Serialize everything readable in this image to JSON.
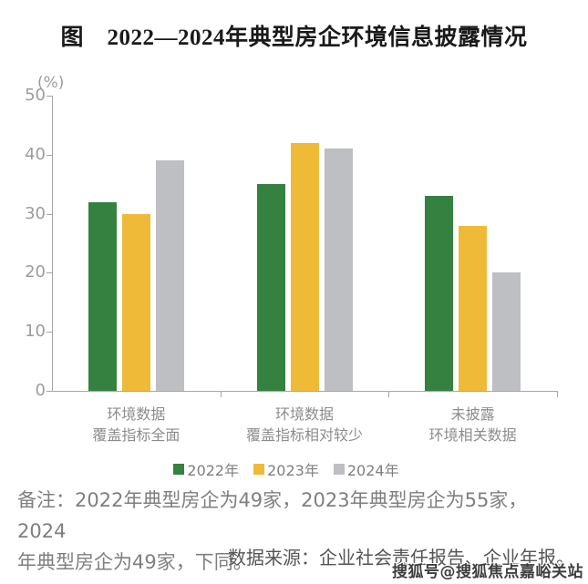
{
  "chart_data": {
    "type": "bar",
    "title": "图　2022—2024年典型房企环境信息披露情况",
    "unit_label": "(%)",
    "categories": [
      {
        "lines": [
          "环境数据",
          "覆盖指标全面"
        ]
      },
      {
        "lines": [
          "环境数据",
          "覆盖指标相对较少"
        ]
      },
      {
        "lines": [
          "未披露",
          "环境相关数据"
        ]
      }
    ],
    "series": [
      {
        "name": "2022年",
        "color": "#35813f",
        "values": [
          32,
          35,
          33
        ]
      },
      {
        "name": "2023年",
        "color": "#eeba38",
        "values": [
          30,
          42,
          28
        ]
      },
      {
        "name": "2024年",
        "color": "#bdbfc2",
        "values": [
          39,
          41,
          20
        ]
      }
    ],
    "ylim": [
      0,
      50
    ],
    "ytick_step": 10,
    "grid": false,
    "legend_position": "bottom",
    "axis_color": "#a6a6a6",
    "tick_label_color": "#9c9c9c",
    "category_label_color": "#8c8c8c",
    "legend_text_color": "#7f7f7f"
  },
  "notes": {
    "remark_lines": [
      "备注：2022年典型房企为49家，2023年典型房企为55家，2024",
      "年典型房企为49家，下同。"
    ],
    "source": "数据来源：企业社会责任报告、企业年报。",
    "watermark": "搜狐号@搜狐焦点嘉峪关站"
  }
}
